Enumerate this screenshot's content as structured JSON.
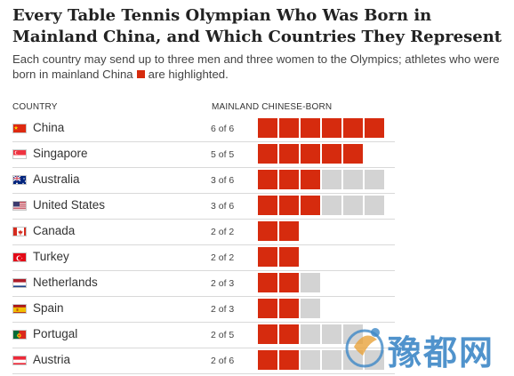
{
  "header": {
    "title": "Every Table Tennis Olympian Who Was Born in Mainland China, and Which Countries They Represent",
    "subtitle_before": "Each country may send up to three men and three women to the Olympics; athletes who were born in mainland China",
    "subtitle_after": "are highlighted."
  },
  "columns": {
    "country": "COUNTRY",
    "born": "MAINLAND CHINESE-BORN"
  },
  "colors": {
    "highlight": "#d62b0e",
    "other": "#d3d3d3"
  },
  "chart_data": {
    "type": "table",
    "title": "Every Table Tennis Olympian Who Was Born in Mainland China, and Which Countries They Represent",
    "rows": [
      {
        "country": "China",
        "flag": "china-flag",
        "born": 6,
        "total": 6,
        "label": "6 of 6"
      },
      {
        "country": "Singapore",
        "flag": "singapore-flag",
        "born": 5,
        "total": 5,
        "label": "5 of 5"
      },
      {
        "country": "Australia",
        "flag": "australia-flag",
        "born": 3,
        "total": 6,
        "label": "3 of 6"
      },
      {
        "country": "United States",
        "flag": "united-states-flag",
        "born": 3,
        "total": 6,
        "label": "3 of 6"
      },
      {
        "country": "Canada",
        "flag": "canada-flag",
        "born": 2,
        "total": 2,
        "label": "2 of 2"
      },
      {
        "country": "Turkey",
        "flag": "turkey-flag",
        "born": 2,
        "total": 2,
        "label": "2 of 2"
      },
      {
        "country": "Netherlands",
        "flag": "netherlands-flag",
        "born": 2,
        "total": 3,
        "label": "2 of 3"
      },
      {
        "country": "Spain",
        "flag": "spain-flag",
        "born": 2,
        "total": 3,
        "label": "2 of 3"
      },
      {
        "country": "Portugal",
        "flag": "portugal-flag",
        "born": 2,
        "total": 5,
        "label": "2 of 5"
      },
      {
        "country": "Austria",
        "flag": "austria-flag",
        "born": 2,
        "total": 6,
        "label": "2 of 6"
      }
    ]
  },
  "watermark": {
    "text": "豫都网",
    "icon": "watermark-logo-icon"
  }
}
